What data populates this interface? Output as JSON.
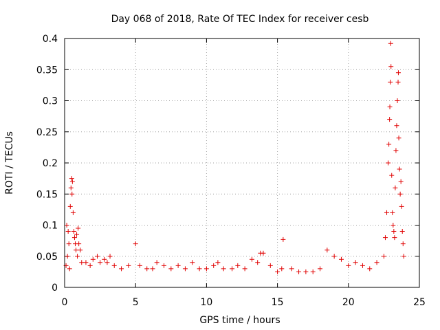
{
  "chart_data": {
    "type": "scatter",
    "title": "Day 068 of 2018, Rate Of TEC Index for receiver cesb",
    "xlabel": "GPS time / hours",
    "ylabel": "ROTI / TECUs",
    "xlim": [
      0,
      25
    ],
    "ylim": [
      0,
      0.4
    ],
    "x_ticks": [
      0,
      5,
      10,
      15,
      20,
      25
    ],
    "x_tick_labels": [
      "0",
      "5",
      "10",
      "15",
      "20",
      "25"
    ],
    "y_ticks": [
      0,
      0.05,
      0.1,
      0.15,
      0.2,
      0.25,
      0.3,
      0.35,
      0.4
    ],
    "y_tick_labels": [
      "0",
      "0.05",
      "0.1",
      "0.15",
      "0.2",
      "0.25",
      "0.3",
      "0.35",
      "0.4"
    ],
    "grid": true,
    "marker": "+",
    "color": "#e00000",
    "series": [
      {
        "name": "ROTI",
        "points": [
          [
            0.1,
            0.035
          ],
          [
            0.15,
            0.1
          ],
          [
            0.2,
            0.05
          ],
          [
            0.25,
            0.09
          ],
          [
            0.3,
            0.07
          ],
          [
            0.35,
            0.03
          ],
          [
            0.4,
            0.13
          ],
          [
            0.45,
            0.16
          ],
          [
            0.5,
            0.175
          ],
          [
            0.52,
            0.15
          ],
          [
            0.55,
            0.17
          ],
          [
            0.6,
            0.12
          ],
          [
            0.65,
            0.09
          ],
          [
            0.7,
            0.08
          ],
          [
            0.75,
            0.07
          ],
          [
            0.8,
            0.06
          ],
          [
            0.85,
            0.085
          ],
          [
            0.9,
            0.05
          ],
          [
            0.95,
            0.095
          ],
          [
            1.0,
            0.07
          ],
          [
            1.1,
            0.06
          ],
          [
            1.2,
            0.04
          ],
          [
            1.5,
            0.04
          ],
          [
            1.8,
            0.035
          ],
          [
            2.0,
            0.045
          ],
          [
            2.3,
            0.05
          ],
          [
            2.5,
            0.04
          ],
          [
            2.8,
            0.045
          ],
          [
            3.0,
            0.04
          ],
          [
            3.2,
            0.05
          ],
          [
            3.5,
            0.035
          ],
          [
            4.0,
            0.03
          ],
          [
            4.5,
            0.035
          ],
          [
            5.0,
            0.07
          ],
          [
            5.3,
            0.035
          ],
          [
            5.8,
            0.03
          ],
          [
            6.2,
            0.03
          ],
          [
            6.5,
            0.04
          ],
          [
            7.0,
            0.035
          ],
          [
            7.5,
            0.03
          ],
          [
            8.0,
            0.035
          ],
          [
            8.5,
            0.03
          ],
          [
            9.0,
            0.04
          ],
          [
            9.5,
            0.03
          ],
          [
            10.0,
            0.03
          ],
          [
            10.5,
            0.035
          ],
          [
            10.8,
            0.04
          ],
          [
            11.2,
            0.03
          ],
          [
            11.8,
            0.03
          ],
          [
            12.2,
            0.035
          ],
          [
            12.7,
            0.03
          ],
          [
            13.2,
            0.045
          ],
          [
            13.6,
            0.04
          ],
          [
            13.8,
            0.055
          ],
          [
            14.0,
            0.055
          ],
          [
            14.5,
            0.035
          ],
          [
            15.0,
            0.025
          ],
          [
            15.3,
            0.03
          ],
          [
            15.4,
            0.077
          ],
          [
            16.0,
            0.03
          ],
          [
            16.5,
            0.025
          ],
          [
            17.0,
            0.025
          ],
          [
            17.5,
            0.025
          ],
          [
            18.0,
            0.03
          ],
          [
            18.5,
            0.06
          ],
          [
            19.0,
            0.05
          ],
          [
            19.5,
            0.045
          ],
          [
            20.0,
            0.035
          ],
          [
            20.5,
            0.04
          ],
          [
            21.0,
            0.035
          ],
          [
            21.5,
            0.03
          ],
          [
            22.0,
            0.04
          ],
          [
            22.5,
            0.05
          ],
          [
            22.6,
            0.08
          ],
          [
            22.7,
            0.12
          ],
          [
            22.8,
            0.2
          ],
          [
            22.85,
            0.23
          ],
          [
            22.9,
            0.27
          ],
          [
            22.92,
            0.29
          ],
          [
            22.95,
            0.33
          ],
          [
            23.0,
            0.355
          ],
          [
            22.98,
            0.392
          ],
          [
            23.05,
            0.18
          ],
          [
            23.1,
            0.12
          ],
          [
            23.15,
            0.1
          ],
          [
            23.2,
            0.09
          ],
          [
            23.25,
            0.08
          ],
          [
            23.3,
            0.16
          ],
          [
            23.35,
            0.22
          ],
          [
            23.4,
            0.26
          ],
          [
            23.45,
            0.3
          ],
          [
            23.5,
            0.33
          ],
          [
            23.52,
            0.345
          ],
          [
            23.55,
            0.24
          ],
          [
            23.6,
            0.19
          ],
          [
            23.65,
            0.15
          ],
          [
            23.7,
            0.17
          ],
          [
            23.75,
            0.13
          ],
          [
            23.8,
            0.09
          ],
          [
            23.85,
            0.07
          ],
          [
            23.9,
            0.05
          ]
        ]
      }
    ]
  }
}
